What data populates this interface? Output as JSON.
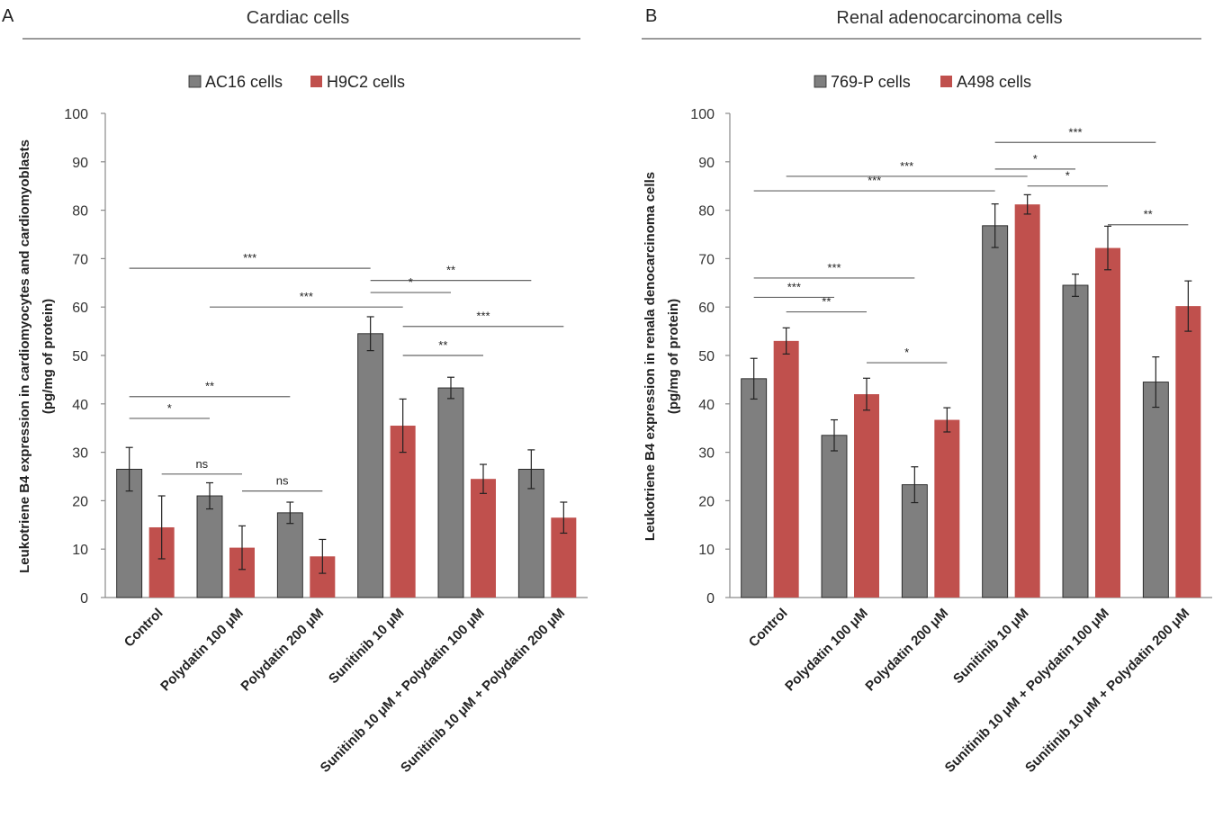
{
  "colors": {
    "series1": "#7f7f7f",
    "series2": "#c0504d",
    "title_rule": "#9a9a9a"
  },
  "chart_data": [
    {
      "type": "bar",
      "panel_label": "A",
      "title": "Cardiac cells",
      "ylabel_line1": "Leukotriene B4 expression in cardiomyocytes and cardiomyoblasts",
      "ylabel_line2": "(pg/mg of protein)",
      "ylim": [
        0,
        100
      ],
      "yticks": [
        "0",
        "10",
        "20",
        "30",
        "40",
        "50",
        "60",
        "70",
        "80",
        "90",
        "100"
      ],
      "legend_position": "top",
      "categories": [
        "Control",
        "Polydatin 100 μM",
        "Polydatin 200 μM",
        "Sunitinib 10 μM",
        "Sunitinib 10 μM + Polydatin 100 μM",
        "Sunitinib 10 μM + Polydatin 200 μM"
      ],
      "series": [
        {
          "name": "AC16 cells",
          "values": [
            26.5,
            21,
            17.5,
            54.5,
            43.3,
            26.5
          ],
          "errors": [
            4.5,
            2.7,
            2.2,
            3.5,
            2.2,
            4.0
          ]
        },
        {
          "name": "H9C2 cells",
          "values": [
            14.5,
            10.3,
            8.5,
            35.5,
            24.5,
            16.5
          ],
          "errors": [
            6.5,
            4.5,
            3.5,
            5.5,
            3.0,
            3.2
          ]
        }
      ],
      "significance": [
        {
          "label": "*",
          "from": [
            0,
            0
          ],
          "to": [
            1,
            0
          ],
          "y": 37
        },
        {
          "label": "**",
          "from": [
            0,
            0
          ],
          "to": [
            2,
            0
          ],
          "y": 41.5
        },
        {
          "label": "ns",
          "from": [
            0,
            1
          ],
          "to": [
            1,
            1
          ],
          "y": 25.5
        },
        {
          "label": "ns",
          "from": [
            1,
            1
          ],
          "to": [
            2,
            1
          ],
          "y": 22
        },
        {
          "label": "***",
          "from": [
            0,
            0
          ],
          "to": [
            3,
            0
          ],
          "y": 68
        },
        {
          "label": "***",
          "from": [
            1,
            0
          ],
          "to": [
            3,
            1
          ],
          "y": 60
        },
        {
          "label": "**",
          "from": [
            3,
            0
          ],
          "to": [
            5,
            0
          ],
          "y": 65.5
        },
        {
          "label": "*",
          "from": [
            3,
            0
          ],
          "to": [
            4,
            0
          ],
          "y": 63
        },
        {
          "label": "***",
          "from": [
            3,
            1
          ],
          "to": [
            5,
            1
          ],
          "y": 56
        },
        {
          "label": "**",
          "from": [
            3,
            1
          ],
          "to": [
            4,
            1
          ],
          "y": 50
        }
      ]
    },
    {
      "type": "bar",
      "panel_label": "B",
      "title": "Renal adenocarcinoma cells",
      "ylabel_line1": "Leukotriene B4 expression in renala denocarcinoma cells",
      "ylabel_line2": "(pg/mg of protein)",
      "ylim": [
        0,
        100
      ],
      "yticks": [
        "0",
        "10",
        "20",
        "30",
        "40",
        "50",
        "60",
        "70",
        "80",
        "90",
        "100"
      ],
      "legend_position": "top",
      "categories": [
        "Control",
        "Polydatin 100 μM",
        "Polydatin 200 μM",
        "Sunitinib 10 μM",
        "Sunitinib 10 μM + Polydatin 100 μM",
        "Sunitinib 10 μM + Polydatin 200 μM"
      ],
      "series": [
        {
          "name": "769-P cells",
          "values": [
            45.2,
            33.5,
            23.3,
            76.8,
            64.5,
            44.5
          ],
          "errors": [
            4.2,
            3.2,
            3.7,
            4.5,
            2.3,
            5.2
          ]
        },
        {
          "name": "A498 cells",
          "values": [
            53,
            42,
            36.7,
            81.2,
            72.2,
            60.2
          ],
          "errors": [
            2.7,
            3.3,
            2.5,
            2.0,
            4.5,
            5.2
          ]
        }
      ],
      "significance": [
        {
          "label": "***",
          "from": [
            0,
            0
          ],
          "to": [
            1,
            0
          ],
          "y": 62
        },
        {
          "label": "**",
          "from": [
            0,
            1
          ],
          "to": [
            1,
            1
          ],
          "y": 59
        },
        {
          "label": "***",
          "from": [
            0,
            0
          ],
          "to": [
            2,
            0
          ],
          "y": 66
        },
        {
          "label": "*",
          "from": [
            1,
            1
          ],
          "to": [
            2,
            1
          ],
          "y": 48.5
        },
        {
          "label": "***",
          "from": [
            0,
            0
          ],
          "to": [
            3,
            0
          ],
          "y": 84
        },
        {
          "label": "***",
          "from": [
            0,
            1
          ],
          "to": [
            3,
            1
          ],
          "y": 87
        },
        {
          "label": "***",
          "from": [
            3,
            0
          ],
          "to": [
            5,
            0
          ],
          "y": 94
        },
        {
          "label": "*",
          "from": [
            3,
            0
          ],
          "to": [
            4,
            0
          ],
          "y": 88.5
        },
        {
          "label": "*",
          "from": [
            3,
            1
          ],
          "to": [
            4,
            1
          ],
          "y": 85
        },
        {
          "label": "**",
          "from": [
            4,
            1
          ],
          "to": [
            5,
            1
          ],
          "y": 77
        }
      ]
    }
  ]
}
